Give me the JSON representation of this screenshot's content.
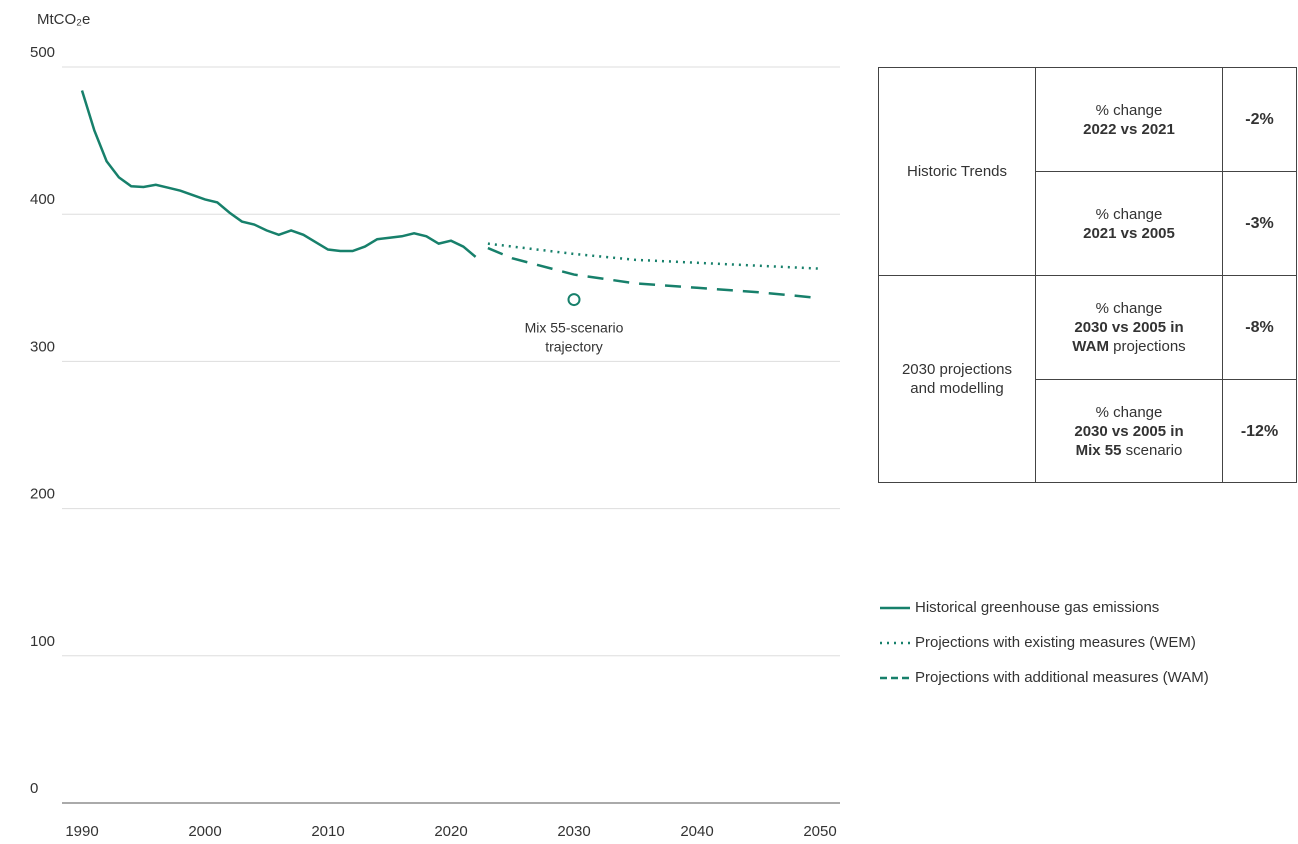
{
  "chart_data": {
    "type": "line",
    "y_label": "MtCO₂e",
    "xlim": [
      1990,
      2050
    ],
    "xticks": [
      1990,
      2000,
      2010,
      2020,
      2030,
      2040,
      2050
    ],
    "ylim": [
      0,
      500
    ],
    "yticks": [
      0,
      100,
      200,
      300,
      400,
      500
    ],
    "grid": true,
    "series": [
      {
        "name": "Historical greenhouse gas emissions",
        "color": "#17806b",
        "dash": "solid",
        "x": [
          1990,
          1991,
          1992,
          1993,
          1994,
          1995,
          1996,
          1997,
          1998,
          1999,
          2000,
          2001,
          2002,
          2003,
          2004,
          2005,
          2006,
          2007,
          2008,
          2009,
          2010,
          2011,
          2012,
          2013,
          2014,
          2015,
          2016,
          2017,
          2018,
          2019,
          2020,
          2021,
          2022
        ],
        "values": [
          484,
          457,
          436,
          425,
          419,
          418.5,
          420,
          418,
          416,
          413,
          410,
          408,
          401,
          395,
          393,
          389,
          386,
          389,
          386,
          381,
          376,
          375,
          375,
          378,
          383,
          384,
          385,
          387,
          385,
          380,
          382,
          378,
          371
        ]
      },
      {
        "name": "Projections with existing measures (WEM)",
        "color": "#17806b",
        "dash": "dotted",
        "x": [
          2023,
          2025,
          2030,
          2035,
          2040,
          2045,
          2050
        ],
        "values": [
          380,
          378,
          373,
          369,
          367,
          365,
          363
        ]
      },
      {
        "name": "Projections with additional measures (WAM)",
        "color": "#17806b",
        "dash": "dashed",
        "x": [
          2023,
          2025,
          2030,
          2035,
          2040,
          2045,
          2050
        ],
        "values": [
          377,
          370,
          359,
          353,
          350,
          347,
          343
        ]
      }
    ],
    "annotations": [
      {
        "label_lines": [
          "Mix 55-scenario",
          "trajectory"
        ],
        "x": 2030,
        "value": 342
      }
    ]
  },
  "table": {
    "groups": [
      {
        "label": "Historic Trends",
        "rows": [
          {
            "lines": [
              [
                {
                  "text": "% change"
                }
              ],
              [
                {
                  "text": "2022 vs 2021",
                  "bold": true
                }
              ]
            ],
            "value": "-2%"
          },
          {
            "lines": [
              [
                {
                  "text": "% change"
                }
              ],
              [
                {
                  "text": "2021 vs 2005",
                  "bold": true
                }
              ]
            ],
            "value": "-3%"
          }
        ]
      },
      {
        "label_lines": [
          "2030 projections",
          "and modelling"
        ],
        "rows": [
          {
            "lines": [
              [
                {
                  "text": "% change"
                }
              ],
              [
                {
                  "text": "2030 vs 2005 in",
                  "bold": true
                }
              ],
              [
                {
                  "text": "WAM",
                  "bold": true
                },
                {
                  "text": " projections"
                }
              ]
            ],
            "value": "-8%"
          },
          {
            "lines": [
              [
                {
                  "text": "% change"
                }
              ],
              [
                {
                  "text": "2030 vs 2005 in",
                  "bold": true
                }
              ],
              [
                {
                  "text": "Mix 55",
                  "bold": true
                },
                {
                  "text": " scenario"
                }
              ]
            ],
            "value": "-12%"
          }
        ]
      }
    ]
  }
}
